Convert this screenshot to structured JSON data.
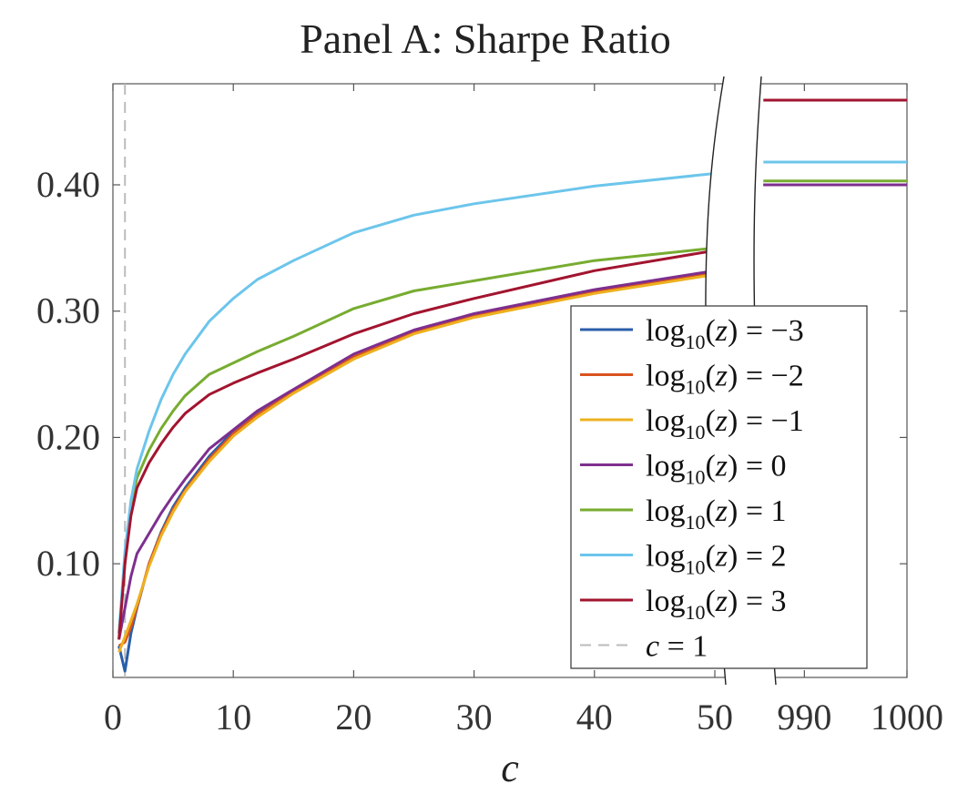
{
  "chart_data": {
    "type": "line",
    "title": "Panel A: Sharpe Ratio",
    "xlabel": "c",
    "ylabel": "",
    "x_axis_break": {
      "left_range": [
        0,
        50
      ],
      "right_range": [
        985,
        1000
      ]
    },
    "ylim": [
      0.01,
      0.48
    ],
    "yticks": [
      0.1,
      0.2,
      0.3,
      0.4
    ],
    "ytick_labels": [
      "0.10",
      "0.20",
      "0.30",
      "0.40"
    ],
    "xticks_left": [
      0,
      10,
      20,
      30,
      40,
      50
    ],
    "xticks_right": [
      990,
      1000
    ],
    "xtick_labels": [
      "0",
      "10",
      "20",
      "30",
      "40",
      "50",
      "990",
      "1000"
    ],
    "x": [
      0.5,
      1,
      1.5,
      2,
      3,
      4,
      5,
      6,
      8,
      10,
      12,
      15,
      20,
      25,
      30,
      40,
      50
    ],
    "x_right": [
      986,
      1000
    ],
    "reference_line": {
      "label": "c = 1",
      "x": 1,
      "style": "dashed",
      "color": "#bbbbbb"
    },
    "legend_position": "lower-right",
    "grid": false,
    "series": [
      {
        "name": "log10(z) = -3",
        "legend_base": "log",
        "legend_sub": "10",
        "legend_open": "(",
        "legend_var": "z",
        "legend_rel": ") = −3",
        "color": "#2a5ea8",
        "values": [
          0.035,
          0.015,
          0.045,
          0.065,
          0.1,
          0.125,
          0.145,
          0.16,
          0.185,
          0.205,
          0.22,
          0.237,
          0.265,
          0.284,
          0.297,
          0.316,
          0.331
        ],
        "right_values": [
          0.4,
          0.4
        ]
      },
      {
        "name": "log10(z) = -2",
        "legend_base": "log",
        "legend_sub": "10",
        "legend_open": "(",
        "legend_var": "z",
        "legend_rel": ") = −2",
        "color": "#d9531e",
        "values": [
          0.035,
          0.038,
          0.05,
          0.066,
          0.1,
          0.124,
          0.143,
          0.158,
          0.183,
          0.203,
          0.218,
          0.236,
          0.264,
          0.283,
          0.296,
          0.315,
          0.33
        ],
        "right_values": [
          0.4,
          0.4
        ]
      },
      {
        "name": "log10(z) = -1",
        "legend_base": "log",
        "legend_sub": "10",
        "legend_open": "(",
        "legend_var": "z",
        "legend_rel": ") = −1",
        "color": "#edb120",
        "values": [
          0.03,
          0.042,
          0.055,
          0.068,
          0.098,
          0.122,
          0.141,
          0.157,
          0.181,
          0.201,
          0.216,
          0.235,
          0.262,
          0.282,
          0.295,
          0.314,
          0.329
        ],
        "right_values": [
          0.4,
          0.4
        ]
      },
      {
        "name": "log10(z) = 0",
        "legend_base": "log",
        "legend_sub": "10",
        "legend_open": "(",
        "legend_var": "z",
        "legend_rel": ") = 0",
        "color": "#7e2f8e",
        "values": [
          0.04,
          0.065,
          0.09,
          0.108,
          0.124,
          0.14,
          0.154,
          0.167,
          0.191,
          0.206,
          0.221,
          0.238,
          0.266,
          0.285,
          0.298,
          0.317,
          0.332
        ],
        "right_values": [
          0.4,
          0.4
        ]
      },
      {
        "name": "log10(z) = 1",
        "legend_base": "log",
        "legend_sub": "10",
        "legend_open": "(",
        "legend_var": "z",
        "legend_rel": ") = 1",
        "color": "#77ac30",
        "values": [
          0.045,
          0.1,
          0.145,
          0.168,
          0.19,
          0.207,
          0.221,
          0.233,
          0.25,
          0.259,
          0.268,
          0.28,
          0.302,
          0.316,
          0.324,
          0.34,
          0.35
        ],
        "right_values": [
          0.403,
          0.403
        ]
      },
      {
        "name": "log10(z) = 2",
        "legend_base": "log",
        "legend_sub": "10",
        "legend_open": "(",
        "legend_var": "z",
        "legend_rel": ") = 2",
        "color": "#6cc5eb",
        "values": [
          0.045,
          0.11,
          0.15,
          0.175,
          0.205,
          0.23,
          0.25,
          0.266,
          0.292,
          0.31,
          0.325,
          0.34,
          0.362,
          0.376,
          0.385,
          0.399,
          0.409
        ],
        "right_values": [
          0.418,
          0.418
        ]
      },
      {
        "name": "log10(z) = 3",
        "legend_base": "log",
        "legend_sub": "10",
        "legend_open": "(",
        "legend_var": "z",
        "legend_rel": ") = 3",
        "color": "#a2142f",
        "values": [
          0.04,
          0.1,
          0.138,
          0.16,
          0.18,
          0.195,
          0.208,
          0.219,
          0.234,
          0.243,
          0.251,
          0.262,
          0.282,
          0.298,
          0.31,
          0.332,
          0.348
        ],
        "right_values": [
          0.467,
          0.467
        ]
      }
    ]
  }
}
